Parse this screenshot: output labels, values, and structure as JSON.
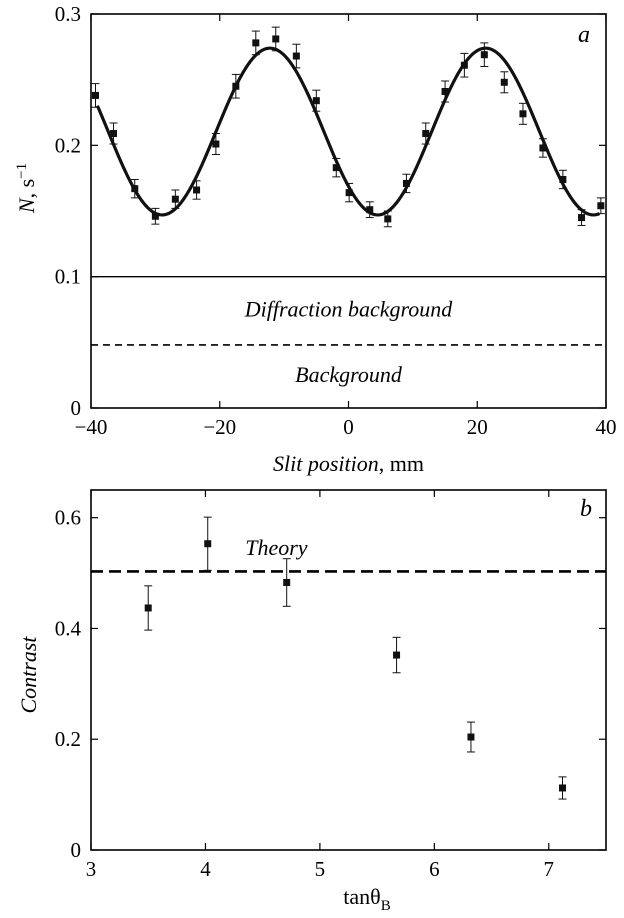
{
  "chart_data": [
    {
      "panel": "a",
      "type": "scatter",
      "xlabel_italic": "Slit position",
      "xlabel_unit": ", mm",
      "ylabel_italic": "N",
      "ylabel_unit": ", s",
      "ylabel_sup": "−1",
      "xlim": [
        -40,
        40
      ],
      "ylim": [
        0,
        0.3
      ],
      "xticks": [
        "-40",
        "-20",
        "0",
        "20",
        "40"
      ],
      "yticks": [
        "0",
        "0.1",
        "0.2",
        "0.3"
      ],
      "points": [
        {
          "x": -39.3,
          "y": 0.238,
          "err": 0.009
        },
        {
          "x": -36.5,
          "y": 0.209,
          "err": 0.008
        },
        {
          "x": -33.2,
          "y": 0.167,
          "err": 0.007
        },
        {
          "x": -30.0,
          "y": 0.146,
          "err": 0.006
        },
        {
          "x": -26.9,
          "y": 0.159,
          "err": 0.007
        },
        {
          "x": -23.6,
          "y": 0.166,
          "err": 0.007
        },
        {
          "x": -20.6,
          "y": 0.201,
          "err": 0.008
        },
        {
          "x": -17.5,
          "y": 0.245,
          "err": 0.009
        },
        {
          "x": -14.4,
          "y": 0.278,
          "err": 0.009
        },
        {
          "x": -11.3,
          "y": 0.281,
          "err": 0.009
        },
        {
          "x": -8.1,
          "y": 0.268,
          "err": 0.009
        },
        {
          "x": -5.0,
          "y": 0.234,
          "err": 0.008
        },
        {
          "x": -1.9,
          "y": 0.183,
          "err": 0.007
        },
        {
          "x": 0.1,
          "y": 0.164,
          "err": 0.007
        },
        {
          "x": 3.3,
          "y": 0.151,
          "err": 0.006
        },
        {
          "x": 6.1,
          "y": 0.144,
          "err": 0.006
        },
        {
          "x": 9.0,
          "y": 0.171,
          "err": 0.007
        },
        {
          "x": 12.0,
          "y": 0.209,
          "err": 0.008
        },
        {
          "x": 15.0,
          "y": 0.241,
          "err": 0.008
        },
        {
          "x": 18.0,
          "y": 0.261,
          "err": 0.009
        },
        {
          "x": 21.1,
          "y": 0.269,
          "err": 0.009
        },
        {
          "x": 24.2,
          "y": 0.248,
          "err": 0.008
        },
        {
          "x": 27.1,
          "y": 0.224,
          "err": 0.008
        },
        {
          "x": 30.2,
          "y": 0.198,
          "err": 0.007
        },
        {
          "x": 33.3,
          "y": 0.174,
          "err": 0.007
        },
        {
          "x": 36.2,
          "y": 0.145,
          "err": 0.006
        },
        {
          "x": 39.2,
          "y": 0.154,
          "err": 0.006
        }
      ],
      "fit": {
        "center": 0.2105,
        "amplitude": 0.0635,
        "period": 33.5,
        "peak_x": -12.2
      },
      "reference_lines": [
        {
          "y": 0.1,
          "style": "solid",
          "label": "Diffraction background",
          "label_y": 0.075
        },
        {
          "y": 0.048,
          "style": "dashed",
          "label": "Background",
          "label_y": 0.025
        }
      ]
    },
    {
      "panel": "b",
      "type": "scatter",
      "xlabel": "tanθ",
      "xlabel_sub": "B",
      "ylabel_italic": "Contrast",
      "xlim": [
        3,
        7.5
      ],
      "ylim": [
        0,
        0.65
      ],
      "xticks": [
        "3",
        "4",
        "5",
        "6",
        "7"
      ],
      "yticks": [
        "0",
        "0.2",
        "0.4",
        "0.6"
      ],
      "points": [
        {
          "x": 3.5,
          "y": 0.437,
          "err": 0.04
        },
        {
          "x": 4.02,
          "y": 0.553,
          "err": 0.048
        },
        {
          "x": 4.71,
          "y": 0.483,
          "err": 0.043
        },
        {
          "x": 5.67,
          "y": 0.352,
          "err": 0.032
        },
        {
          "x": 6.32,
          "y": 0.204,
          "err": 0.027
        },
        {
          "x": 7.12,
          "y": 0.112,
          "err": 0.02
        }
      ],
      "reference_lines": [
        {
          "y": 0.503,
          "style": "dashed",
          "label": "Theory",
          "label_y": 0.545
        }
      ]
    }
  ]
}
